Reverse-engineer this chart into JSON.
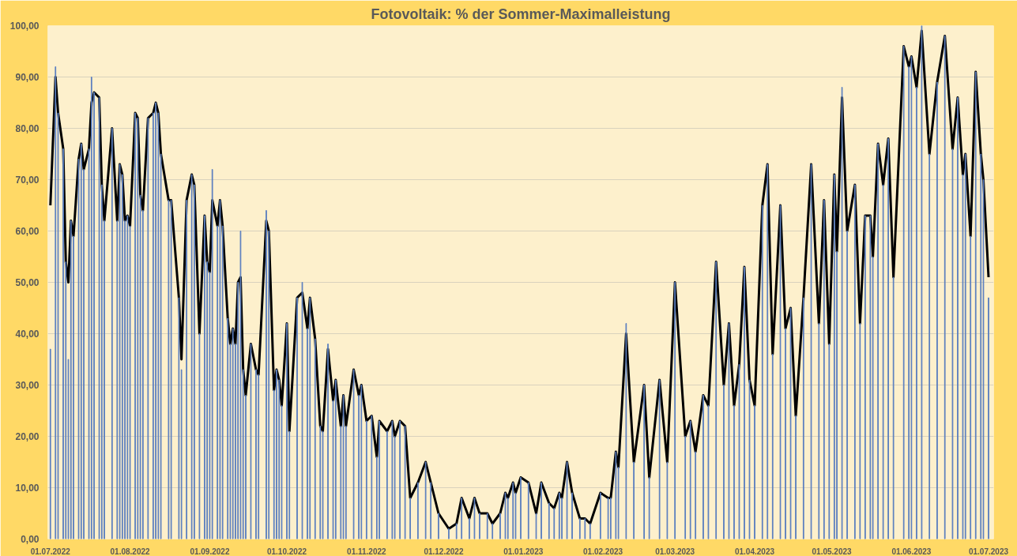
{
  "chart_data": {
    "type": "bar",
    "title": "Fotovoltaik: % der Sommer-Maximalleistung",
    "x": [
      "2022-07-01",
      "2022-07-03",
      "2022-07-04",
      "2022-07-06",
      "2022-07-07",
      "2022-07-08",
      "2022-07-09",
      "2022-07-10",
      "2022-07-12",
      "2022-07-13",
      "2022-07-14",
      "2022-07-16",
      "2022-07-17",
      "2022-07-18",
      "2022-07-20",
      "2022-07-21",
      "2022-07-22",
      "2022-07-25",
      "2022-07-27",
      "2022-07-28",
      "2022-07-29",
      "2022-07-30",
      "2022-07-31",
      "2022-08-01",
      "2022-08-03",
      "2022-08-04",
      "2022-08-05",
      "2022-08-06",
      "2022-08-08",
      "2022-08-10",
      "2022-08-11",
      "2022-08-12",
      "2022-08-13",
      "2022-08-16",
      "2022-08-17",
      "2022-08-20",
      "2022-08-21",
      "2022-08-23",
      "2022-08-25",
      "2022-08-26",
      "2022-08-28",
      "2022-08-30",
      "2022-08-31",
      "2022-09-01",
      "2022-09-02",
      "2022-09-04",
      "2022-09-05",
      "2022-09-06",
      "2022-09-08",
      "2022-09-09",
      "2022-09-10",
      "2022-09-11",
      "2022-09-12",
      "2022-09-13",
      "2022-09-14",
      "2022-09-15",
      "2022-09-17",
      "2022-09-19",
      "2022-09-20",
      "2022-09-23",
      "2022-09-24",
      "2022-09-26",
      "2022-09-27",
      "2022-09-28",
      "2022-09-29",
      "2022-10-01",
      "2022-10-02",
      "2022-10-05",
      "2022-10-07",
      "2022-10-09",
      "2022-10-10",
      "2022-10-12",
      "2022-10-14",
      "2022-10-15",
      "2022-10-17",
      "2022-10-19",
      "2022-10-20",
      "2022-10-22",
      "2022-10-23",
      "2022-10-24",
      "2022-10-27",
      "2022-10-29",
      "2022-10-30",
      "2022-11-01",
      "2022-11-03",
      "2022-11-05",
      "2022-11-06",
      "2022-11-09",
      "2022-11-11",
      "2022-11-12",
      "2022-11-14",
      "2022-11-16",
      "2022-11-18",
      "2022-11-21",
      "2022-11-24",
      "2022-11-26",
      "2022-11-29",
      "2022-12-03",
      "2022-12-06",
      "2022-12-08",
      "2022-12-11",
      "2022-12-13",
      "2022-12-15",
      "2022-12-18",
      "2022-12-20",
      "2022-12-23",
      "2022-12-25",
      "2022-12-26",
      "2022-12-28",
      "2022-12-29",
      "2022-12-31",
      "2023-01-03",
      "2023-01-06",
      "2023-01-08",
      "2023-01-11",
      "2023-01-13",
      "2023-01-15",
      "2023-01-16",
      "2023-01-18",
      "2023-01-20",
      "2023-01-23",
      "2023-01-25",
      "2023-01-27",
      "2023-01-31",
      "2023-02-03",
      "2023-02-04",
      "2023-02-06",
      "2023-02-07",
      "2023-02-10",
      "2023-02-13",
      "2023-02-17",
      "2023-02-19",
      "2023-02-23",
      "2023-02-26",
      "2023-03-01",
      "2023-03-05",
      "2023-03-07",
      "2023-03-09",
      "2023-03-12",
      "2023-03-14",
      "2023-03-17",
      "2023-03-20",
      "2023-03-22",
      "2023-03-24",
      "2023-03-26",
      "2023-03-28",
      "2023-03-30",
      "2023-04-01",
      "2023-04-04",
      "2023-04-06",
      "2023-04-08",
      "2023-04-11",
      "2023-04-13",
      "2023-04-15",
      "2023-04-17",
      "2023-04-20",
      "2023-04-23",
      "2023-04-26",
      "2023-04-28",
      "2023-04-30",
      "2023-05-02",
      "2023-05-03",
      "2023-05-05",
      "2023-05-07",
      "2023-05-10",
      "2023-05-12",
      "2023-05-14",
      "2023-05-16",
      "2023-05-17",
      "2023-05-19",
      "2023-05-21",
      "2023-05-23",
      "2023-05-25",
      "2023-05-29",
      "2023-05-31",
      "2023-06-01",
      "2023-06-03",
      "2023-06-05",
      "2023-06-08",
      "2023-06-11",
      "2023-06-14",
      "2023-06-17",
      "2023-06-19",
      "2023-06-21",
      "2023-06-22",
      "2023-06-24",
      "2023-06-26",
      "2023-06-28",
      "2023-06-29",
      "2023-07-01"
    ],
    "series": [
      {
        "color": "#5b7fbf",
        "values": [
          37,
          92,
          83,
          76,
          54,
          35,
          62,
          59,
          74,
          77,
          72,
          76,
          90,
          87,
          86,
          69,
          62,
          80,
          62,
          73,
          71,
          62,
          63,
          61,
          83,
          82,
          67,
          64,
          82,
          83,
          85,
          83,
          75,
          66,
          66,
          47,
          33,
          66,
          71,
          69,
          40,
          63,
          54,
          52,
          72,
          61,
          66,
          61,
          43,
          38,
          41,
          38,
          50,
          60,
          33,
          28,
          38,
          33,
          32,
          64,
          60,
          29,
          33,
          31,
          26,
          42,
          21,
          47,
          50,
          41,
          47,
          39,
          22,
          21,
          38,
          27,
          31,
          22,
          28,
          22,
          33,
          28,
          30,
          23,
          24,
          16,
          23,
          21,
          23,
          20,
          23,
          22,
          8,
          11,
          15,
          11,
          5,
          2,
          3,
          8,
          4,
          8,
          5,
          5,
          3,
          5,
          9,
          8,
          11,
          9,
          12,
          11,
          5,
          11,
          7,
          6,
          9,
          8,
          15,
          9,
          4,
          4,
          3,
          9,
          8,
          8,
          17,
          14,
          42,
          15,
          30,
          12,
          31,
          15,
          50,
          20,
          23,
          17,
          28,
          26,
          54,
          30,
          42,
          26,
          34,
          53,
          31,
          26,
          65,
          73,
          36,
          65,
          41,
          45,
          24,
          47,
          73,
          42,
          66,
          38,
          71,
          56,
          88,
          60,
          69,
          42,
          63,
          63,
          55,
          77,
          69,
          78,
          51,
          96,
          92,
          94,
          88,
          100,
          75,
          89,
          98,
          76,
          86,
          71,
          75,
          59,
          91,
          75,
          70,
          47
        ]
      },
      {
        "type": "line",
        "color": "#000000",
        "values": [
          65,
          90,
          83,
          76,
          54,
          50,
          62,
          59,
          74,
          77,
          72,
          76,
          85,
          87,
          86,
          69,
          62,
          80,
          62,
          73,
          71,
          62,
          63,
          61,
          83,
          82,
          67,
          64,
          82,
          83,
          85,
          83,
          75,
          66,
          66,
          47,
          35,
          66,
          71,
          69,
          40,
          63,
          54,
          52,
          66,
          61,
          66,
          61,
          43,
          38,
          41,
          38,
          50,
          51,
          33,
          28,
          38,
          33,
          32,
          62,
          60,
          29,
          33,
          31,
          26,
          42,
          21,
          47,
          48,
          41,
          47,
          39,
          22,
          21,
          37,
          27,
          31,
          22,
          28,
          22,
          33,
          28,
          30,
          23,
          24,
          16,
          23,
          21,
          23,
          20,
          23,
          22,
          8,
          11,
          15,
          11,
          5,
          2,
          3,
          8,
          4,
          8,
          5,
          5,
          3,
          5,
          9,
          8,
          11,
          9,
          12,
          11,
          5,
          11,
          7,
          6,
          9,
          8,
          15,
          9,
          4,
          4,
          3,
          9,
          8,
          8,
          17,
          14,
          40,
          15,
          30,
          12,
          31,
          15,
          50,
          20,
          23,
          17,
          28,
          26,
          54,
          30,
          42,
          26,
          34,
          53,
          31,
          26,
          65,
          73,
          36,
          65,
          41,
          45,
          24,
          47,
          73,
          42,
          66,
          38,
          71,
          56,
          86,
          60,
          69,
          42,
          63,
          63,
          55,
          77,
          69,
          78,
          51,
          96,
          92,
          94,
          88,
          99,
          75,
          89,
          98,
          76,
          86,
          71,
          75,
          59,
          91,
          75,
          70,
          51
        ]
      }
    ],
    "xlim": [
      "2022-06-30",
      "2023-07-03"
    ],
    "xticks": [
      {
        "value": "2022-07-01",
        "label": "01.07.2022"
      },
      {
        "value": "2022-08-01",
        "label": "01.08.2022"
      },
      {
        "value": "2022-09-01",
        "label": "01.09.2022"
      },
      {
        "value": "2022-10-01",
        "label": "01.10.2022"
      },
      {
        "value": "2022-11-01",
        "label": "01.11.2022"
      },
      {
        "value": "2022-12-01",
        "label": "01.12.2022"
      },
      {
        "value": "2023-01-01",
        "label": "01.01.2023"
      },
      {
        "value": "2023-02-01",
        "label": "01.02.2023"
      },
      {
        "value": "2023-03-01",
        "label": "01.03.2023"
      },
      {
        "value": "2023-04-01",
        "label": "01.04.2023"
      },
      {
        "value": "2023-05-01",
        "label": "01.05.2023"
      },
      {
        "value": "2023-06-01",
        "label": "01.06.2023"
      },
      {
        "value": "2023-07-01",
        "label": "01.07.2023"
      }
    ],
    "ylim": [
      0,
      100
    ],
    "yticks": [
      {
        "value": 0,
        "label": "0,00"
      },
      {
        "value": 10,
        "label": "10,00"
      },
      {
        "value": 20,
        "label": "20,00"
      },
      {
        "value": 30,
        "label": "30,00"
      },
      {
        "value": 40,
        "label": "40,00"
      },
      {
        "value": 50,
        "label": "50,00"
      },
      {
        "value": 60,
        "label": "60,00"
      },
      {
        "value": 70,
        "label": "70,00"
      },
      {
        "value": 80,
        "label": "80,00"
      },
      {
        "value": 90,
        "label": "90,00"
      },
      {
        "value": 100,
        "label": "100,00"
      }
    ],
    "grid": "y",
    "line_style": "solid",
    "marker": "none"
  }
}
